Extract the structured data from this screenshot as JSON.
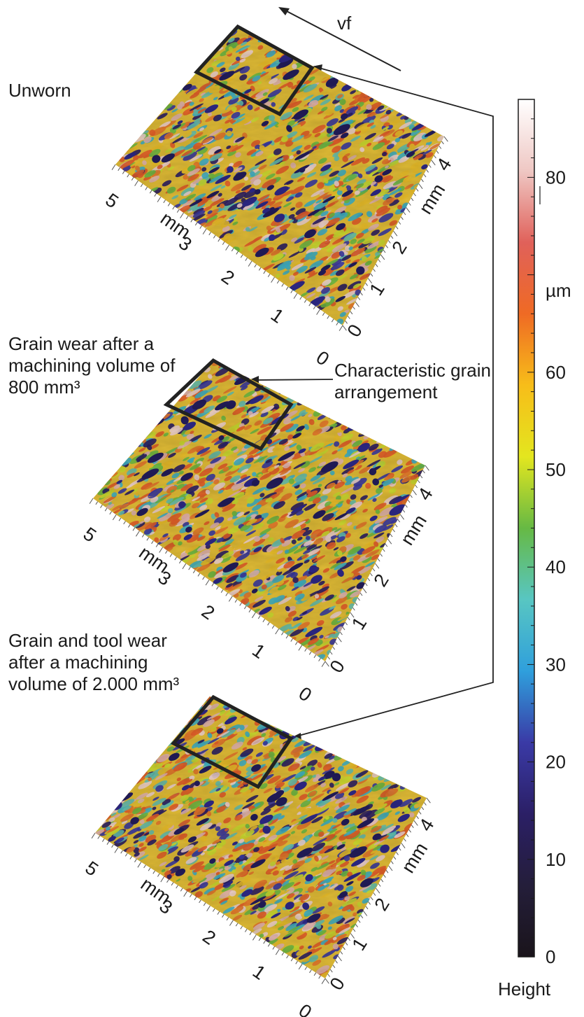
{
  "feed_arrow": {
    "label": "vf"
  },
  "annotation": {
    "line1": "Characteristic grain",
    "line2": "arrangement"
  },
  "panels": [
    {
      "caption": [
        "Unworn"
      ],
      "x_ticks": [
        "0",
        "1",
        "2",
        "3",
        "5"
      ],
      "x_unit": "mm",
      "y_ticks": [
        "0",
        "1",
        "2",
        "4"
      ],
      "y_unit": "mm"
    },
    {
      "caption": [
        "Grain wear after a",
        "machining volume of",
        "800 mm³"
      ],
      "x_ticks": [
        "0",
        "1",
        "2",
        "3",
        "5"
      ],
      "x_unit": "mm",
      "y_ticks": [
        "0",
        "1",
        "2",
        "4"
      ],
      "y_unit": "mm"
    },
    {
      "caption": [
        "Grain and tool wear",
        "after a machining",
        "volume of 2.000 mm³"
      ],
      "x_ticks": [
        "0",
        "1",
        "2",
        "3",
        "5"
      ],
      "x_unit": "mm",
      "y_ticks": [
        "0",
        "1",
        "2",
        "4"
      ],
      "y_unit": "mm"
    }
  ],
  "colorbar": {
    "ticks": [
      "80",
      "60",
      "50",
      "40",
      "30",
      "20",
      "10",
      "0"
    ],
    "unit": "µm",
    "title": "Height",
    "colors": [
      "#1a141b",
      "#241e3a",
      "#2b1f66",
      "#3a3aa6",
      "#2f9fdc",
      "#58c6c2",
      "#66b944",
      "#e3e61f",
      "#f7bd19",
      "#ef6a24",
      "#e0615a",
      "#efc8c4",
      "#ffffff"
    ]
  }
}
